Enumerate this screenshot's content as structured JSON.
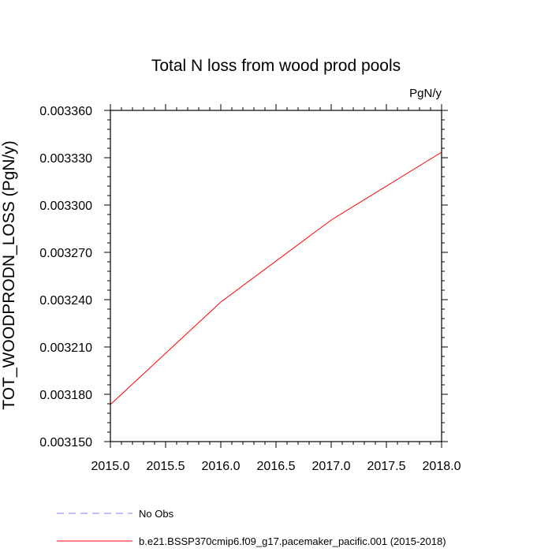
{
  "chart_data": {
    "type": "line",
    "title": "Total N loss from wood prod pools",
    "units_label": "PgN/y",
    "ylabel": "TOT_WOODPRODN_LOSS  (PgN/y)",
    "xlabel": "",
    "xlim": [
      2015.0,
      2018.0
    ],
    "ylim": [
      0.00315,
      0.00336
    ],
    "x_ticks": [
      "2015.0",
      "2015.5",
      "2016.0",
      "2016.5",
      "2017.0",
      "2017.5",
      "2018.0"
    ],
    "y_ticks": [
      "0.003150",
      "0.003180",
      "0.003210",
      "0.003240",
      "0.003270",
      "0.003300",
      "0.003330",
      "0.003360"
    ],
    "grid": false,
    "legend_position": "bottom",
    "series": [
      {
        "name": "b.e21.BSSP370cmip6.f09_g17.pacemaker_pacific.001 (2015-2018)",
        "color": "#ff0000",
        "dash": "solid",
        "x": [
          2015.0,
          2016.0,
          2017.0,
          2018.0
        ],
        "y": [
          0.0031735,
          0.0032385,
          0.0032905,
          0.0033335
        ]
      }
    ],
    "legend": [
      {
        "label": "No Obs",
        "color": "#8080ff",
        "dash": "dashed"
      },
      {
        "label": "b.e21.BSSP370cmip6.f09_g17.pacemaker_pacific.001 (2015-2018)",
        "color": "#ff0000",
        "dash": "solid"
      }
    ]
  }
}
